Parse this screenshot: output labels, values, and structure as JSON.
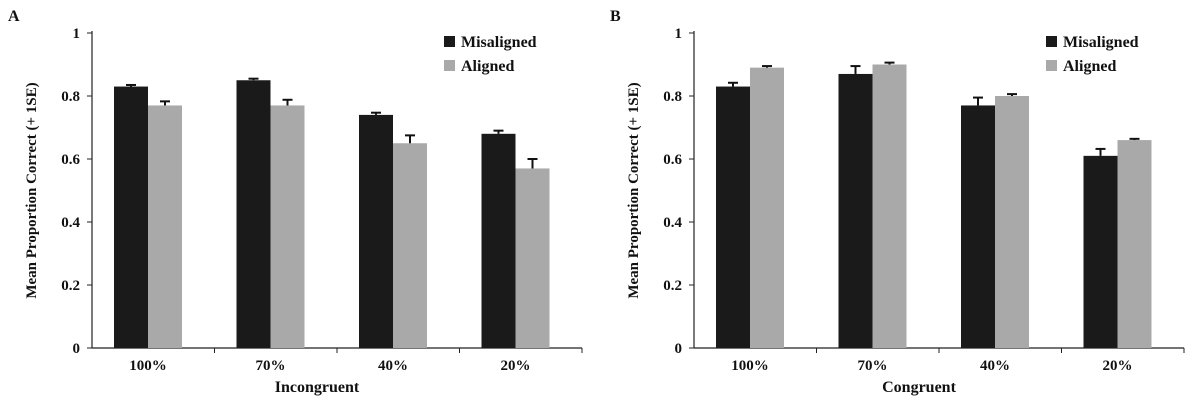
{
  "figure": {
    "colors": {
      "misaligned": "#1a1a1a",
      "aligned": "#a9a9a9",
      "axis": "#222222"
    }
  },
  "chart_data": [
    {
      "type": "bar",
      "panel_label": "A",
      "title": "",
      "xlabel": "Incongruent",
      "ylabel": "Mean Proportion Correct (+ 1SE)",
      "categories": [
        "100%",
        "70%",
        "40%",
        "20%"
      ],
      "ylim": [
        0,
        1
      ],
      "yticks": [
        0,
        0.2,
        0.4,
        0.6,
        0.8,
        1
      ],
      "ytick_labels": [
        "0",
        "0.2",
        "0.4",
        "0.6",
        "0.8",
        "1"
      ],
      "legend_position": "top-right",
      "grid": false,
      "series": [
        {
          "name": "Misaligned",
          "values": [
            0.83,
            0.85,
            0.74,
            0.68
          ],
          "errors": [
            0.005,
            0.005,
            0.007,
            0.01
          ]
        },
        {
          "name": "Aligned",
          "values": [
            0.77,
            0.77,
            0.65,
            0.57
          ],
          "errors": [
            0.013,
            0.018,
            0.025,
            0.03
          ]
        }
      ]
    },
    {
      "type": "bar",
      "panel_label": "B",
      "title": "",
      "xlabel": "Congruent",
      "ylabel": "Mean Proportion Correct (+ 1SE)",
      "categories": [
        "100%",
        "70%",
        "40%",
        "20%"
      ],
      "ylim": [
        0,
        1
      ],
      "yticks": [
        0,
        0.2,
        0.4,
        0.6,
        0.8,
        1
      ],
      "ytick_labels": [
        "0",
        "0.2",
        "0.4",
        "0.6",
        "0.8",
        "1"
      ],
      "legend_position": "top-right",
      "grid": false,
      "series": [
        {
          "name": "Misaligned",
          "values": [
            0.83,
            0.87,
            0.77,
            0.61
          ],
          "errors": [
            0.012,
            0.025,
            0.025,
            0.022
          ]
        },
        {
          "name": "Aligned",
          "values": [
            0.89,
            0.9,
            0.8,
            0.66
          ],
          "errors": [
            0.005,
            0.006,
            0.006,
            0.004
          ]
        }
      ]
    }
  ]
}
